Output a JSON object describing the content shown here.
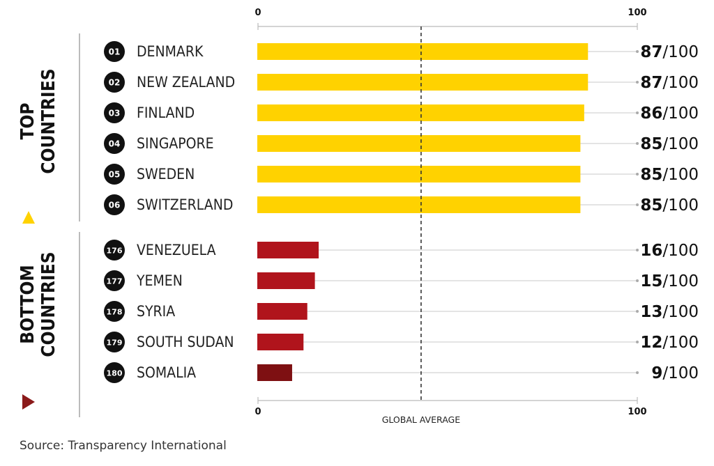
{
  "chart_data": {
    "type": "bar",
    "orientation": "horizontal",
    "xlim": [
      0,
      100
    ],
    "axis_ticks": [
      "0",
      "100"
    ],
    "reference_line": {
      "label": "GLOBAL AVERAGE",
      "value": 43
    },
    "score_suffix": "/100",
    "groups": [
      {
        "name": "TOP COUNTRIES",
        "name_lines": [
          "TOP",
          "COUNTRIES"
        ],
        "color": "#FFD200",
        "marker_color": "#FFD200",
        "items": [
          {
            "rank": "01",
            "country": "DENMARK",
            "score": 87
          },
          {
            "rank": "02",
            "country": "NEW ZEALAND",
            "score": 87
          },
          {
            "rank": "03",
            "country": "FINLAND",
            "score": 86
          },
          {
            "rank": "04",
            "country": "SINGAPORE",
            "score": 85
          },
          {
            "rank": "05",
            "country": "SWEDEN",
            "score": 85
          },
          {
            "rank": "06",
            "country": "SWITZERLAND",
            "score": 85
          }
        ]
      },
      {
        "name": "BOTTOM COUNTRIES",
        "name_lines": [
          "BOTTOM",
          "COUNTRIES"
        ],
        "color": "#B0141C",
        "marker_color": "#8B1A1A",
        "items": [
          {
            "rank": "176",
            "country": "VENEZUELA",
            "score": 16
          },
          {
            "rank": "177",
            "country": "YEMEN",
            "score": 15
          },
          {
            "rank": "178",
            "country": "SYRIA",
            "score": 13
          },
          {
            "rank": "179",
            "country": "SOUTH SUDAN",
            "score": 12
          },
          {
            "rank": "180",
            "country": "SOMALIA",
            "score": 9,
            "color": "#7E1012"
          }
        ]
      }
    ]
  },
  "source": "Source: Transparency International"
}
